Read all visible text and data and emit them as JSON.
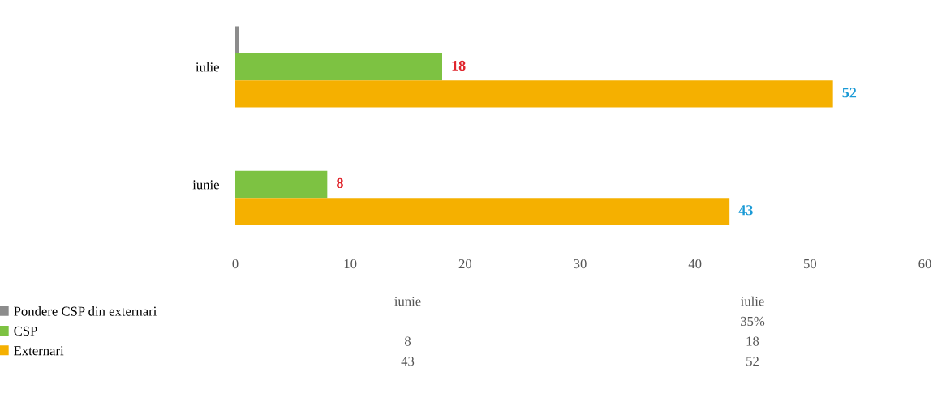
{
  "chart_data": {
    "type": "bar",
    "orientation": "horizontal",
    "categories": [
      "iulie",
      "iunie"
    ],
    "series": [
      {
        "name": "Pondere CSP din externari",
        "color": "#8c8c8c",
        "values": [
          0.35,
          null
        ],
        "value_labels": [
          null,
          null
        ]
      },
      {
        "name": "CSP",
        "color": "#7dc242",
        "values": [
          18,
          8
        ]
      },
      {
        "name": "Externari",
        "color": "#f5b000",
        "values": [
          52,
          43
        ]
      }
    ],
    "xlim": [
      0,
      60
    ],
    "xticks": [
      0,
      10,
      20,
      30,
      40,
      50,
      60
    ],
    "data_labels": true,
    "annotations": [
      "35%",
      "8",
      "18",
      "43",
      "52"
    ],
    "grid": false,
    "legend": "bottom left"
  }
}
